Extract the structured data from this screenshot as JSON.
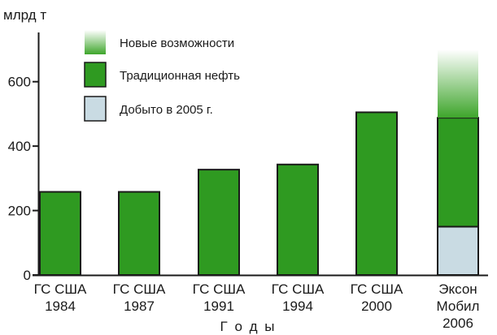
{
  "chart_data": {
    "type": "bar",
    "stacked": true,
    "ylabel": "млрд т",
    "xlabel": "Г о д ы",
    "ylim": [
      0,
      700
    ],
    "yticks": [
      0,
      200,
      400,
      600
    ],
    "grid": false,
    "legend_position": "top-left",
    "categories": [
      [
        "ГС США",
        "1984"
      ],
      [
        "ГС США",
        "1987"
      ],
      [
        "ГС США",
        "1991"
      ],
      [
        "ГС США",
        "1994"
      ],
      [
        "ГС США",
        "2000"
      ],
      [
        "Эксон",
        "Мобил",
        "2006"
      ]
    ],
    "series": [
      {
        "name": "Добыто в 2005 г.",
        "color": "#c9dbe3",
        "values": [
          0,
          0,
          0,
          0,
          0,
          150
        ]
      },
      {
        "name": "Традиционная нефть",
        "color": "#2f9a21",
        "values": [
          258,
          258,
          327,
          343,
          505,
          338
        ]
      },
      {
        "name": "Новые возможности",
        "color": "#55b83a",
        "gradient_to": "#ffffff",
        "values": [
          0,
          0,
          0,
          0,
          0,
          212
        ]
      }
    ],
    "legend_order": [
      "Новые возможности",
      "Традиционная нефть",
      "Добыто в 2005 г."
    ]
  }
}
